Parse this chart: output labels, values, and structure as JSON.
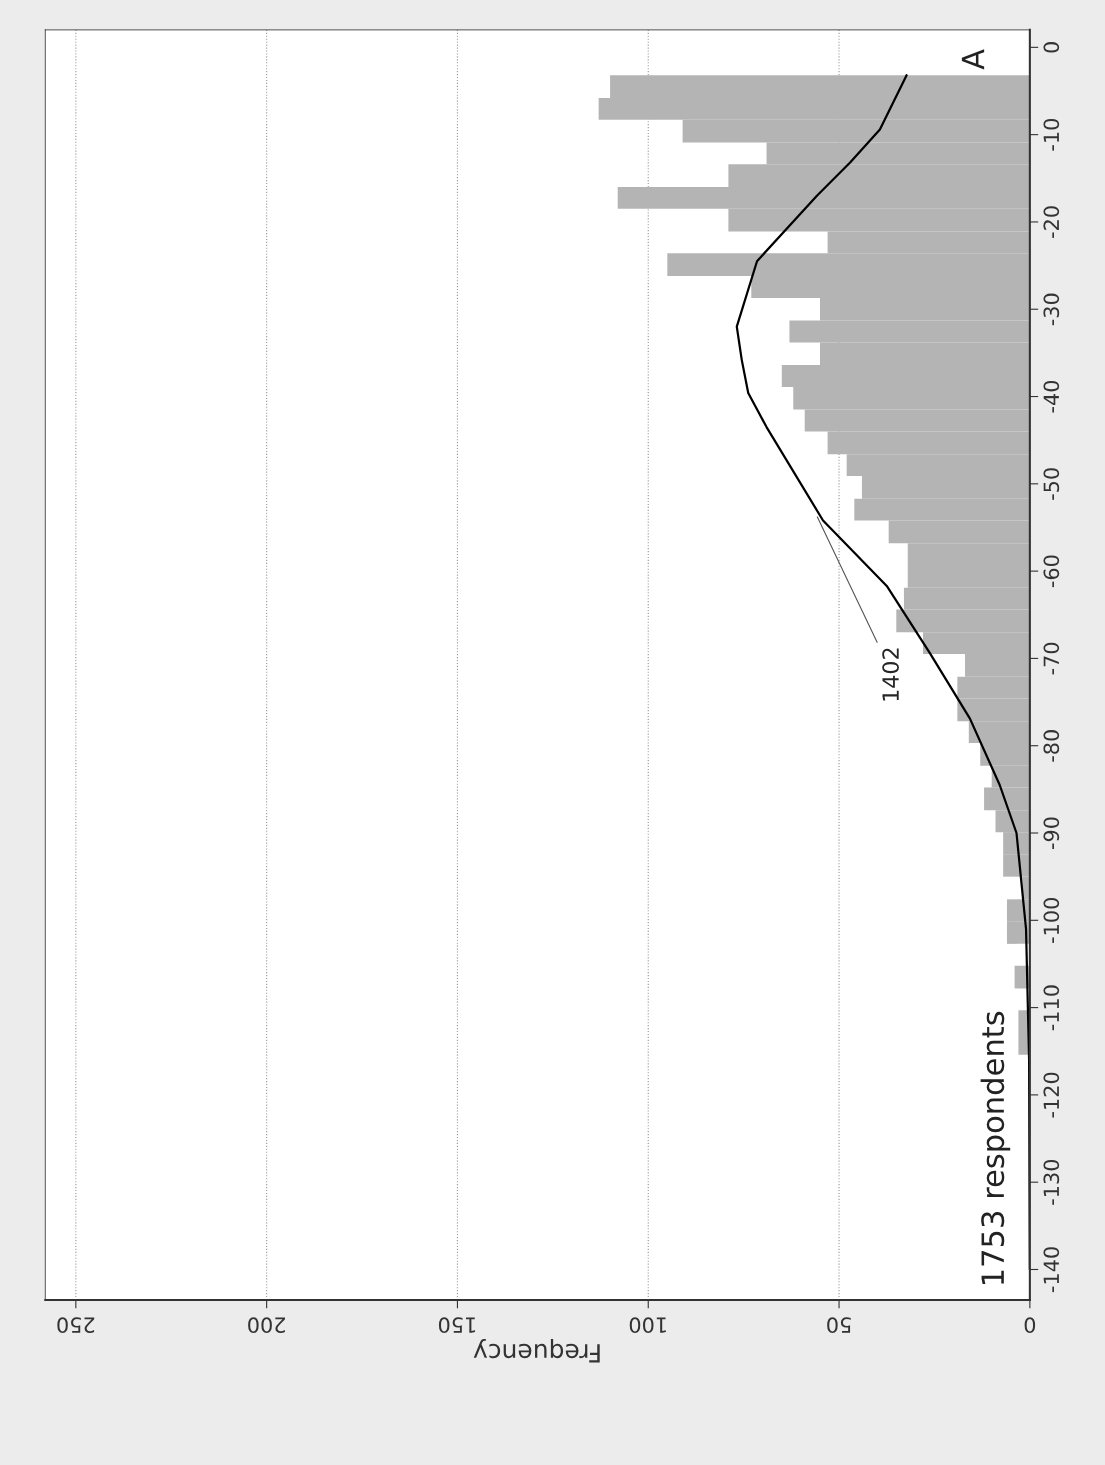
{
  "chart_data": {
    "type": "histogram",
    "orientation": "horizontal",
    "xlabel": "Frequency",
    "annotations": [
      "1753 respondents",
      "A",
      {
        "text": "1402",
        "x": 56,
        "y": -53.5
      }
    ],
    "bins": [
      -115.4,
      -112.9,
      -110.3,
      -107.8,
      -105.2,
      -102.7,
      -100.1,
      -97.6,
      -95.0,
      -92.5,
      -89.9,
      -87.4,
      -84.8,
      -82.3,
      -79.7,
      -77.2,
      -74.6,
      -72.1,
      -69.5,
      -67.0,
      -64.4,
      -61.9,
      -59.3,
      -56.8,
      -54.2,
      -51.7,
      -49.1,
      -46.6,
      -44.0,
      -41.5,
      -38.9,
      -36.4,
      -33.8,
      -31.3,
      -28.7,
      -26.2,
      -23.6,
      -21.1,
      -18.5,
      -16.0,
      -13.4,
      -10.9,
      -8.3,
      -5.8,
      -3.2
    ],
    "values": [
      3,
      3,
      null,
      4,
      null,
      6,
      6,
      2,
      7,
      7,
      9,
      12,
      10,
      13,
      16,
      19,
      19,
      17,
      28,
      35,
      33,
      32,
      32,
      37,
      46,
      44,
      48,
      53,
      59,
      62,
      65,
      55,
      63,
      55,
      73,
      95,
      53,
      79,
      108,
      79,
      69,
      91,
      113,
      110
    ],
    "color": "#b4b4b4",
    "series": [
      {
        "type": "line",
        "color": "#000000",
        "x": [
          -140,
          -116,
          -101,
          -90,
          -84.5,
          -76.9,
          -69.4,
          -61.7,
          -54.2,
          -43.5,
          -39.6,
          -35.8,
          -32,
          -24.5,
          -17,
          -13.2,
          -9.4,
          -3.2
        ],
        "values": [
          0,
          0.2,
          1,
          3.5,
          7.9,
          15.7,
          26.2,
          37.5,
          54.2,
          69,
          73.8,
          75.5,
          76.8,
          71.5,
          55.8,
          47.1,
          39.3,
          32.3
        ]
      }
    ],
    "ylim": [
      -143.5,
      2
    ],
    "yticks": [
      -140,
      -130,
      -120,
      -110,
      -100,
      -90,
      -80,
      -70,
      -60,
      -50,
      -40,
      -30,
      -20,
      -10,
      0
    ],
    "xlim": [
      258,
      0
    ],
    "xticks": [
      0,
      50,
      100,
      150,
      200,
      250
    ],
    "grid": "x"
  }
}
